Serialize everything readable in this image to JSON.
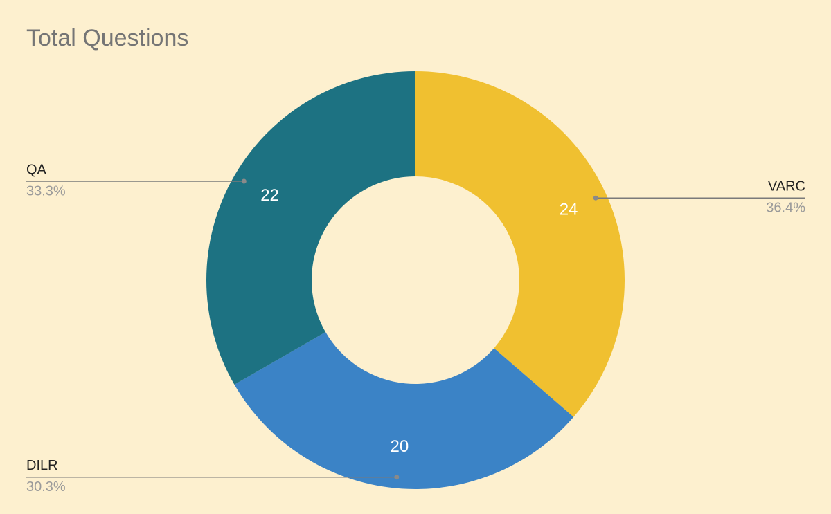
{
  "chart_data": {
    "type": "donut",
    "title": "Total Questions",
    "categories": [
      "VARC",
      "DILR",
      "QA"
    ],
    "values": [
      24,
      20,
      22
    ],
    "percent_labels": [
      "36.4%",
      "30.3%",
      "33.3%"
    ],
    "colors": [
      "#f0c030",
      "#3b83c6",
      "#1d7282"
    ]
  }
}
